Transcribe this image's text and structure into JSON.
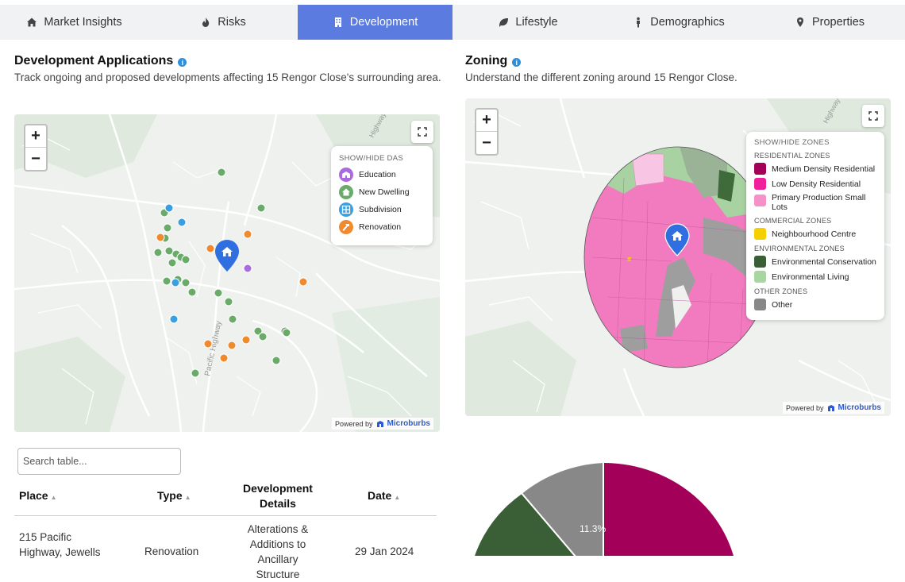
{
  "tabs": [
    {
      "label": "Market Insights",
      "icon": "home-icon",
      "active": false
    },
    {
      "label": "Risks",
      "icon": "flame-icon",
      "active": false
    },
    {
      "label": "Development",
      "icon": "building-icon",
      "active": true
    },
    {
      "label": "Lifestyle",
      "icon": "leaf-icon",
      "active": false
    },
    {
      "label": "Demographics",
      "icon": "person-icon",
      "active": false
    },
    {
      "label": "Properties",
      "icon": "map-pin-icon",
      "active": false
    }
  ],
  "development": {
    "title": "Development Applications",
    "description": "Track ongoing and proposed developments affecting 15 Rengor Close's surrounding area.",
    "legend_title": "SHOW/HIDE DAS",
    "legend": [
      {
        "label": "Education",
        "color": "#a86be0",
        "icon": "school-icon"
      },
      {
        "label": "New Dwelling",
        "color": "#6aab6a",
        "icon": "house-icon"
      },
      {
        "label": "Subdivision",
        "color": "#3a9fe0",
        "icon": "grid-icon"
      },
      {
        "label": "Renovation",
        "color": "#f08a2c",
        "icon": "hammer-icon"
      }
    ],
    "road_label": "Pacific Highway",
    "road_label_2": "Highway"
  },
  "zoning": {
    "title": "Zoning",
    "description": "Understand the different zoning around 15 Rengor Close.",
    "legend_title": "SHOW/HIDE ZONES",
    "groups": [
      {
        "name": "RESIDENTIAL ZONES",
        "items": [
          {
            "label": "Medium Density Residential",
            "color": "#a3005a"
          },
          {
            "label": "Low Density Residential",
            "color": "#f0209a"
          },
          {
            "label": "Primary Production Small Lots",
            "color": "#f590c8"
          }
        ]
      },
      {
        "name": "COMMERCIAL ZONES",
        "items": [
          {
            "label": "Neighbourhood Centre",
            "color": "#f5d000"
          }
        ]
      },
      {
        "name": "ENVIRONMENTAL ZONES",
        "items": [
          {
            "label": "Environmental Conservation",
            "color": "#3a5e36"
          },
          {
            "label": "Environmental Living",
            "color": "#a8d6a0"
          }
        ]
      },
      {
        "name": "OTHER ZONES",
        "items": [
          {
            "label": "Other",
            "color": "#888888"
          }
        ]
      }
    ],
    "road_label": "Highway"
  },
  "powered_by": "Powered by",
  "brand": "Microburbs",
  "zoom_in": "+",
  "zoom_out": "−",
  "table": {
    "search_placeholder": "Search table...",
    "columns": [
      "Place",
      "Type",
      "Development Details",
      "Date"
    ],
    "rows": [
      {
        "place": "215 Pacific Highway, Jewells",
        "type": "Renovation",
        "details": "Alterations & Additions to Ancillary Structure",
        "date": "29 Jan 2024"
      }
    ]
  },
  "chart_data": {
    "type": "pie",
    "slices": [
      {
        "label": "Medium Density Residential",
        "color": "#a3005a"
      },
      {
        "label": "Environmental Conservation",
        "color": "#3a5e36"
      },
      {
        "label": "Other",
        "color": "#888888",
        "value": 11.3
      }
    ],
    "data_labels": [
      "11.3%"
    ]
  }
}
